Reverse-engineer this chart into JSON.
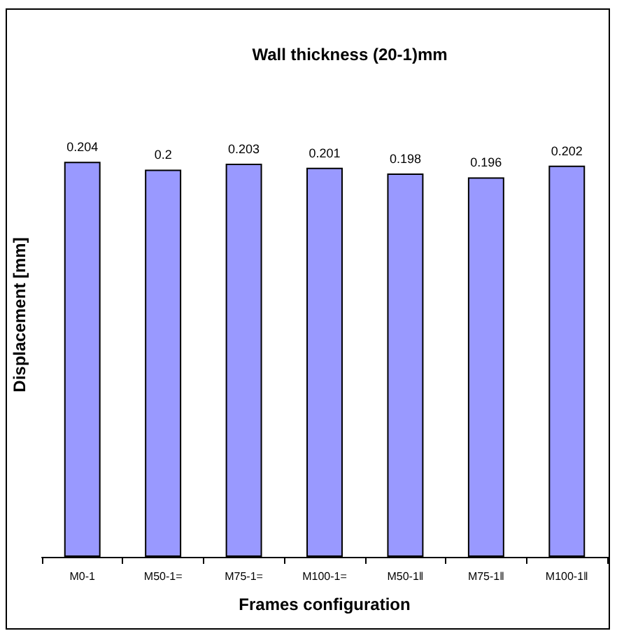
{
  "chart_data": {
    "type": "bar",
    "title": "Wall thickness (20-1)mm",
    "xlabel": "Frames configuration",
    "ylabel": "Displacement [mm]",
    "categories": [
      "M0-1",
      "M50-1=",
      "M75-1=",
      "M100-1=",
      "M50-1‖",
      "M75-1‖",
      "M100-1‖"
    ],
    "values": [
      0.204,
      0.2,
      0.203,
      0.201,
      0.198,
      0.196,
      0.202
    ],
    "color": "#9999ff",
    "data_labels": true
  }
}
